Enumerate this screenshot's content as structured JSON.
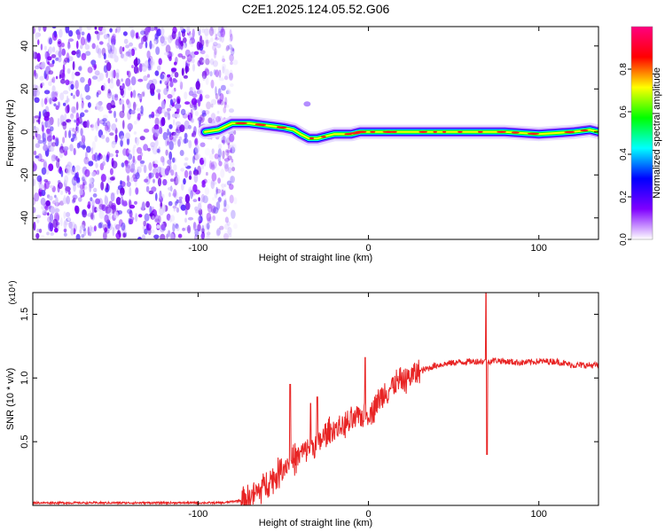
{
  "title": "C2E1.2025.124.05.52.G06",
  "chart_data": [
    {
      "type": "heatmap",
      "xlabel": "Height of straight line (km)",
      "ylabel": "Frequency (Hz)",
      "xlim": [
        -197,
        135
      ],
      "ylim": [
        -50,
        49
      ],
      "xticks": [
        -100,
        0,
        100
      ],
      "yticks": [
        -40,
        -20,
        0,
        20,
        40
      ],
      "colorbar": {
        "label": "Normalized spectral amplitude",
        "range": [
          0,
          1
        ],
        "ticks": [
          "0.0",
          "0.2",
          "0.4",
          "0.6",
          "0.8"
        ],
        "stops": [
          "#ffffff",
          "#7f00ff",
          "#0000ff",
          "#00ffff",
          "#00ff00",
          "#ffff00",
          "#ff0000",
          "#ff0080"
        ]
      },
      "noise_region": {
        "x": [
          -197,
          -78
        ],
        "freq": [
          -50,
          49
        ]
      },
      "ridge": {
        "x": [
          -96,
          -88,
          -80,
          -70,
          -60,
          -50,
          -44,
          -40,
          -35,
          -30,
          -25,
          -20,
          -15,
          -10,
          -5,
          0,
          20,
          40,
          60,
          80,
          100,
          120,
          130,
          135
        ],
        "freq": [
          0,
          1,
          4,
          4,
          3,
          2,
          1,
          -1,
          -3,
          -3,
          -2,
          -1,
          -1,
          -1,
          0,
          0,
          0,
          0,
          0,
          0,
          -1,
          0,
          1,
          0
        ]
      },
      "spots": [
        {
          "x": -112,
          "freq": 12
        },
        {
          "x": -36,
          "freq": 13
        }
      ]
    },
    {
      "type": "line",
      "xlabel": "Height of straight line (km)",
      "ylabel": "SNR (10 * v/v)",
      "y_multiplier": "(x10⁴)",
      "xlim": [
        -197,
        135
      ],
      "ylim": [
        0,
        1.67
      ],
      "xticks": [
        -100,
        0,
        100
      ],
      "yticks": [
        0.5,
        1.0,
        1.5
      ],
      "ytick_labels": [
        "0.5",
        "1.0",
        "1.5"
      ],
      "color": "#e82424",
      "envelope": {
        "x": [
          -197,
          -150,
          -100,
          -85,
          -75,
          -65,
          -60,
          -55,
          -50,
          -45,
          -40,
          -35,
          -30,
          -25,
          -20,
          -15,
          -10,
          -5,
          0,
          5,
          10,
          20,
          30,
          40,
          50,
          60,
          65,
          70,
          75,
          80,
          90,
          100,
          110,
          120,
          135
        ],
        "y": [
          0.02,
          0.02,
          0.02,
          0.02,
          0.04,
          0.1,
          0.18,
          0.22,
          0.3,
          0.35,
          0.4,
          0.45,
          0.48,
          0.55,
          0.6,
          0.62,
          0.65,
          0.7,
          0.72,
          0.8,
          0.9,
          0.98,
          1.05,
          1.1,
          1.12,
          1.13,
          1.13,
          1.13,
          1.14,
          1.13,
          1.12,
          1.13,
          1.13,
          1.1,
          1.1
        ]
      },
      "spikes": [
        {
          "x": -46,
          "y": 0.95
        },
        {
          "x": -34,
          "y": 0.8
        },
        {
          "x": -30,
          "y": 0.85
        },
        {
          "x": -2,
          "y": 1.16
        },
        {
          "x": 69,
          "y": 1.67
        },
        {
          "x": 69.5,
          "y": 0.4
        }
      ]
    }
  ]
}
